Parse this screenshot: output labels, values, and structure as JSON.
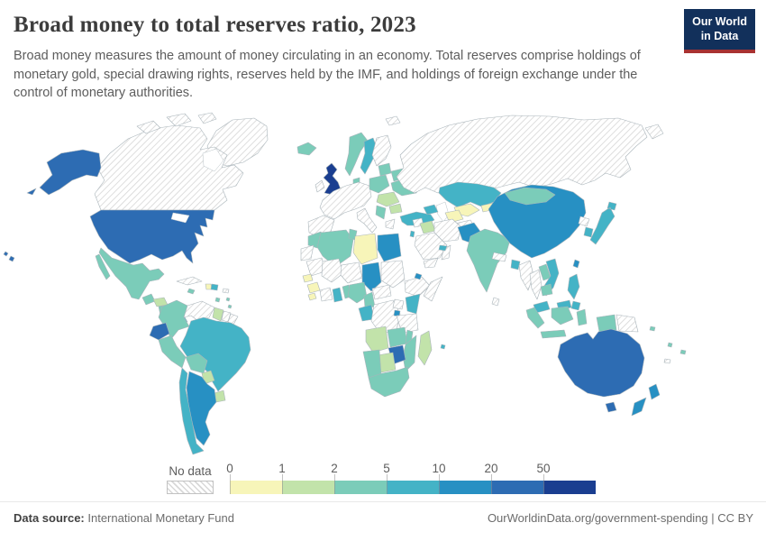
{
  "header": {
    "title": "Broad money to total reserves ratio, 2023",
    "subtitle": "Broad money measures the amount of money circulating in an economy. Total reserves comprise holdings of monetary gold, special drawing rights, reserves held by the IMF, and holdings of foreign exchange under the control of monetary authorities.",
    "logo": {
      "line1": "Our World",
      "line2": "in Data",
      "bg": "#12305b",
      "accent": "#a83232"
    }
  },
  "footer": {
    "datasource_label": "Data source:",
    "datasource_value": " International Monetary Fund",
    "attribution": "OurWorldinData.org/government-spending | CC BY"
  },
  "chart_data": {
    "type": "choropleth_map",
    "title": "Broad money to total reserves ratio, 2023",
    "year": "2023",
    "legend": {
      "no_data_label": "No data",
      "tick_labels": [
        "0",
        "1",
        "2",
        "5",
        "10",
        "20",
        "50"
      ],
      "bins": [
        {
          "tick": "0",
          "range": "0-1",
          "color": "#f7f5b9"
        },
        {
          "tick": "1",
          "range": "1-2",
          "color": "#c2e3aa"
        },
        {
          "tick": "2",
          "range": "2-5",
          "color": "#7bccb9"
        },
        {
          "tick": "5",
          "range": "5-10",
          "color": "#44b3c6"
        },
        {
          "tick": "10",
          "range": "10-20",
          "color": "#2790c3"
        },
        {
          "tick": "20",
          "range": "20-50",
          "color": "#2d6cb3"
        },
        {
          "tick": "50",
          "range": "50+",
          "color": "#1a3e90"
        }
      ],
      "no_data_pattern": "diagonal-hatch"
    },
    "countries": {
      "united-states": "20-50",
      "alaska": "20-50",
      "hawaii": "20-50",
      "aleutians": "20-50",
      "canada": "no-data",
      "greenland": "no-data",
      "arctic-islands": "no-data",
      "svalbard": "no-data",
      "mexico": "2-5",
      "guatemala": "2-5",
      "honduras": "1-2",
      "nicaragua": "2-5",
      "costa-rica": "1-2",
      "panama": "5-10",
      "cuba": "no-data",
      "jamaica": "2-5",
      "haiti": "0-1",
      "dominican-republic": "5-10",
      "puerto-rico": "no-data",
      "lesser-antilles": "2-5",
      "trinidad": "2-5",
      "colombia": "2-5",
      "venezuela": "no-data",
      "guyana": "1-2",
      "suriname": "no-data",
      "french-guiana": "no-data",
      "ecuador": "20-50",
      "peru": "2-5",
      "brazil": "5-10",
      "bolivia": "2-5",
      "paraguay": "1-2",
      "uruguay": "1-2",
      "chile": "5-10",
      "argentina": "10-20",
      "iceland": "2-5",
      "united-kingdom": "50+",
      "ireland": "no-data",
      "norway": "2-5",
      "sweden": "5-10",
      "finland": "no-data",
      "denmark": "2-5",
      "western-europe": "no-data",
      "poland-czech": "2-5",
      "baltics": "2-5",
      "belarus": "2-5",
      "ukraine": "2-5",
      "hungary-romania": "1-2",
      "bulgaria": "1-2",
      "balkans": "2-5",
      "russia": "no-data",
      "turkey": "5-10",
      "caucasus": "5-10",
      "kazakhstan": "5-10",
      "uzbekistan": "0-1",
      "turkmenistan": "0-1",
      "kyrgyzstan": "0-1",
      "afghanistan": "no-data",
      "iran": "no-data",
      "iraq": "1-2",
      "syria": "no-data",
      "israel": "5-10",
      "saudi-arabia": "no-data",
      "yemen": "no-data",
      "oman": "no-data",
      "uae": "5-10",
      "morocco": "2-5",
      "western-sahara": "no-data",
      "algeria": "2-5",
      "tunisia": "2-5",
      "libya": "0-1",
      "egypt": "10-20",
      "mauritania": "no-data",
      "senegal": "0-1",
      "guinea": "0-1",
      "sierra-leone": "0-1",
      "mali": "no-data",
      "niger": "no-data",
      "chad": "10-20",
      "sudan": "no-data",
      "ethiopia": "no-data",
      "djibouti": "10-20",
      "somalia": "no-data",
      "ivory-coast": "no-data",
      "ghana": "5-10",
      "togo-benin": "2-5",
      "nigeria": "2-5",
      "cameroon": "2-5",
      "central-african-republic": "no-data",
      "gabon-congo": "5-10",
      "drc": "no-data",
      "uganda": "no-data",
      "rwanda": "10-20",
      "kenya": "5-10",
      "tanzania": "no-data",
      "angola": "1-2",
      "zambia": "2-5",
      "malawi": "2-5",
      "mozambique": "2-5",
      "zimbabwe": "20-50",
      "botswana": "1-2",
      "namibia": "2-5",
      "south-africa": "2-5",
      "madagascar": "1-2",
      "mauritius": "5-10",
      "india": "2-5",
      "pakistan": "10-20",
      "nepal": "no-data",
      "bangladesh": "5-10",
      "sri-lanka": "no-data",
      "china": "10-20",
      "mongolia": "2-5",
      "north-korea": "no-data",
      "south-korea": "5-10",
      "japan": "5-10",
      "taiwan": "10-20",
      "myanmar": "no-data",
      "thailand": "no-data",
      "laos": "2-5",
      "vietnam": "5-10",
      "cambodia": "2-5",
      "malaysia": "5-10",
      "indonesia": "2-5",
      "philippines": "5-10",
      "papua-new-guinea": "no-data",
      "solomon-islands": "2-5",
      "vanuatu": "2-5",
      "fiji": "2-5",
      "new-caledonia": "no-data",
      "australia": "20-50",
      "tasmania": "20-50",
      "new-zealand": "10-20"
    }
  }
}
